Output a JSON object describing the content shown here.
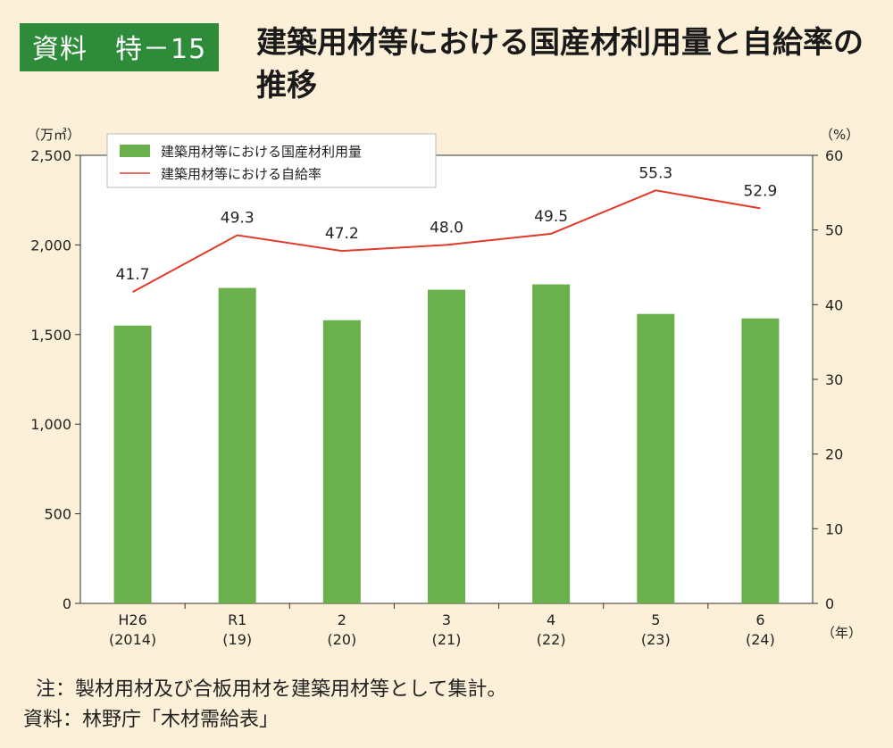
{
  "badge": "資料　特－15",
  "title": "建築用材等における国産材利用量と自給率の推移",
  "notes": {
    "note": "注：製材用材及び合板用材を建築用材等として集計。",
    "source": "資料：林野庁「木材需給表」"
  },
  "colors": {
    "bar": "#6ab04c",
    "line": "#e03a2a",
    "badge": "#2e8b3a",
    "background": "#fdf0d8"
  },
  "chart_data": {
    "type": "bar+line",
    "categories": [
      "H26\n(2014)",
      "R1\n(19)",
      "2\n(20)",
      "3\n(21)",
      "4\n(22)",
      "5\n(23)",
      "6\n(24)"
    ],
    "series": [
      {
        "name": "建築用材等における国産材利用量",
        "type": "bar",
        "axis": "left",
        "values": [
          1550,
          1760,
          1580,
          1750,
          1780,
          1615,
          1590
        ]
      },
      {
        "name": "建築用材等における自給率",
        "type": "line",
        "axis": "right",
        "values": [
          41.7,
          49.3,
          47.2,
          48.0,
          49.5,
          55.3,
          52.9
        ],
        "labels": [
          "41.7",
          "49.3",
          "47.2",
          "48.0",
          "49.5",
          "55.3",
          "52.9"
        ]
      }
    ],
    "ylabel_left": "（万㎥）",
    "ylabel_right": "（%）",
    "xlabel": "（年）",
    "ylim_left": [
      0,
      2500
    ],
    "yticks_left": [
      "0",
      "500",
      "1,000",
      "1,500",
      "2,000",
      "2,500"
    ],
    "ylim_right": [
      0,
      60
    ],
    "yticks_right": [
      "0",
      "10",
      "20",
      "30",
      "40",
      "50",
      "60"
    ],
    "legend_placement": "top-left",
    "grid": false
  }
}
